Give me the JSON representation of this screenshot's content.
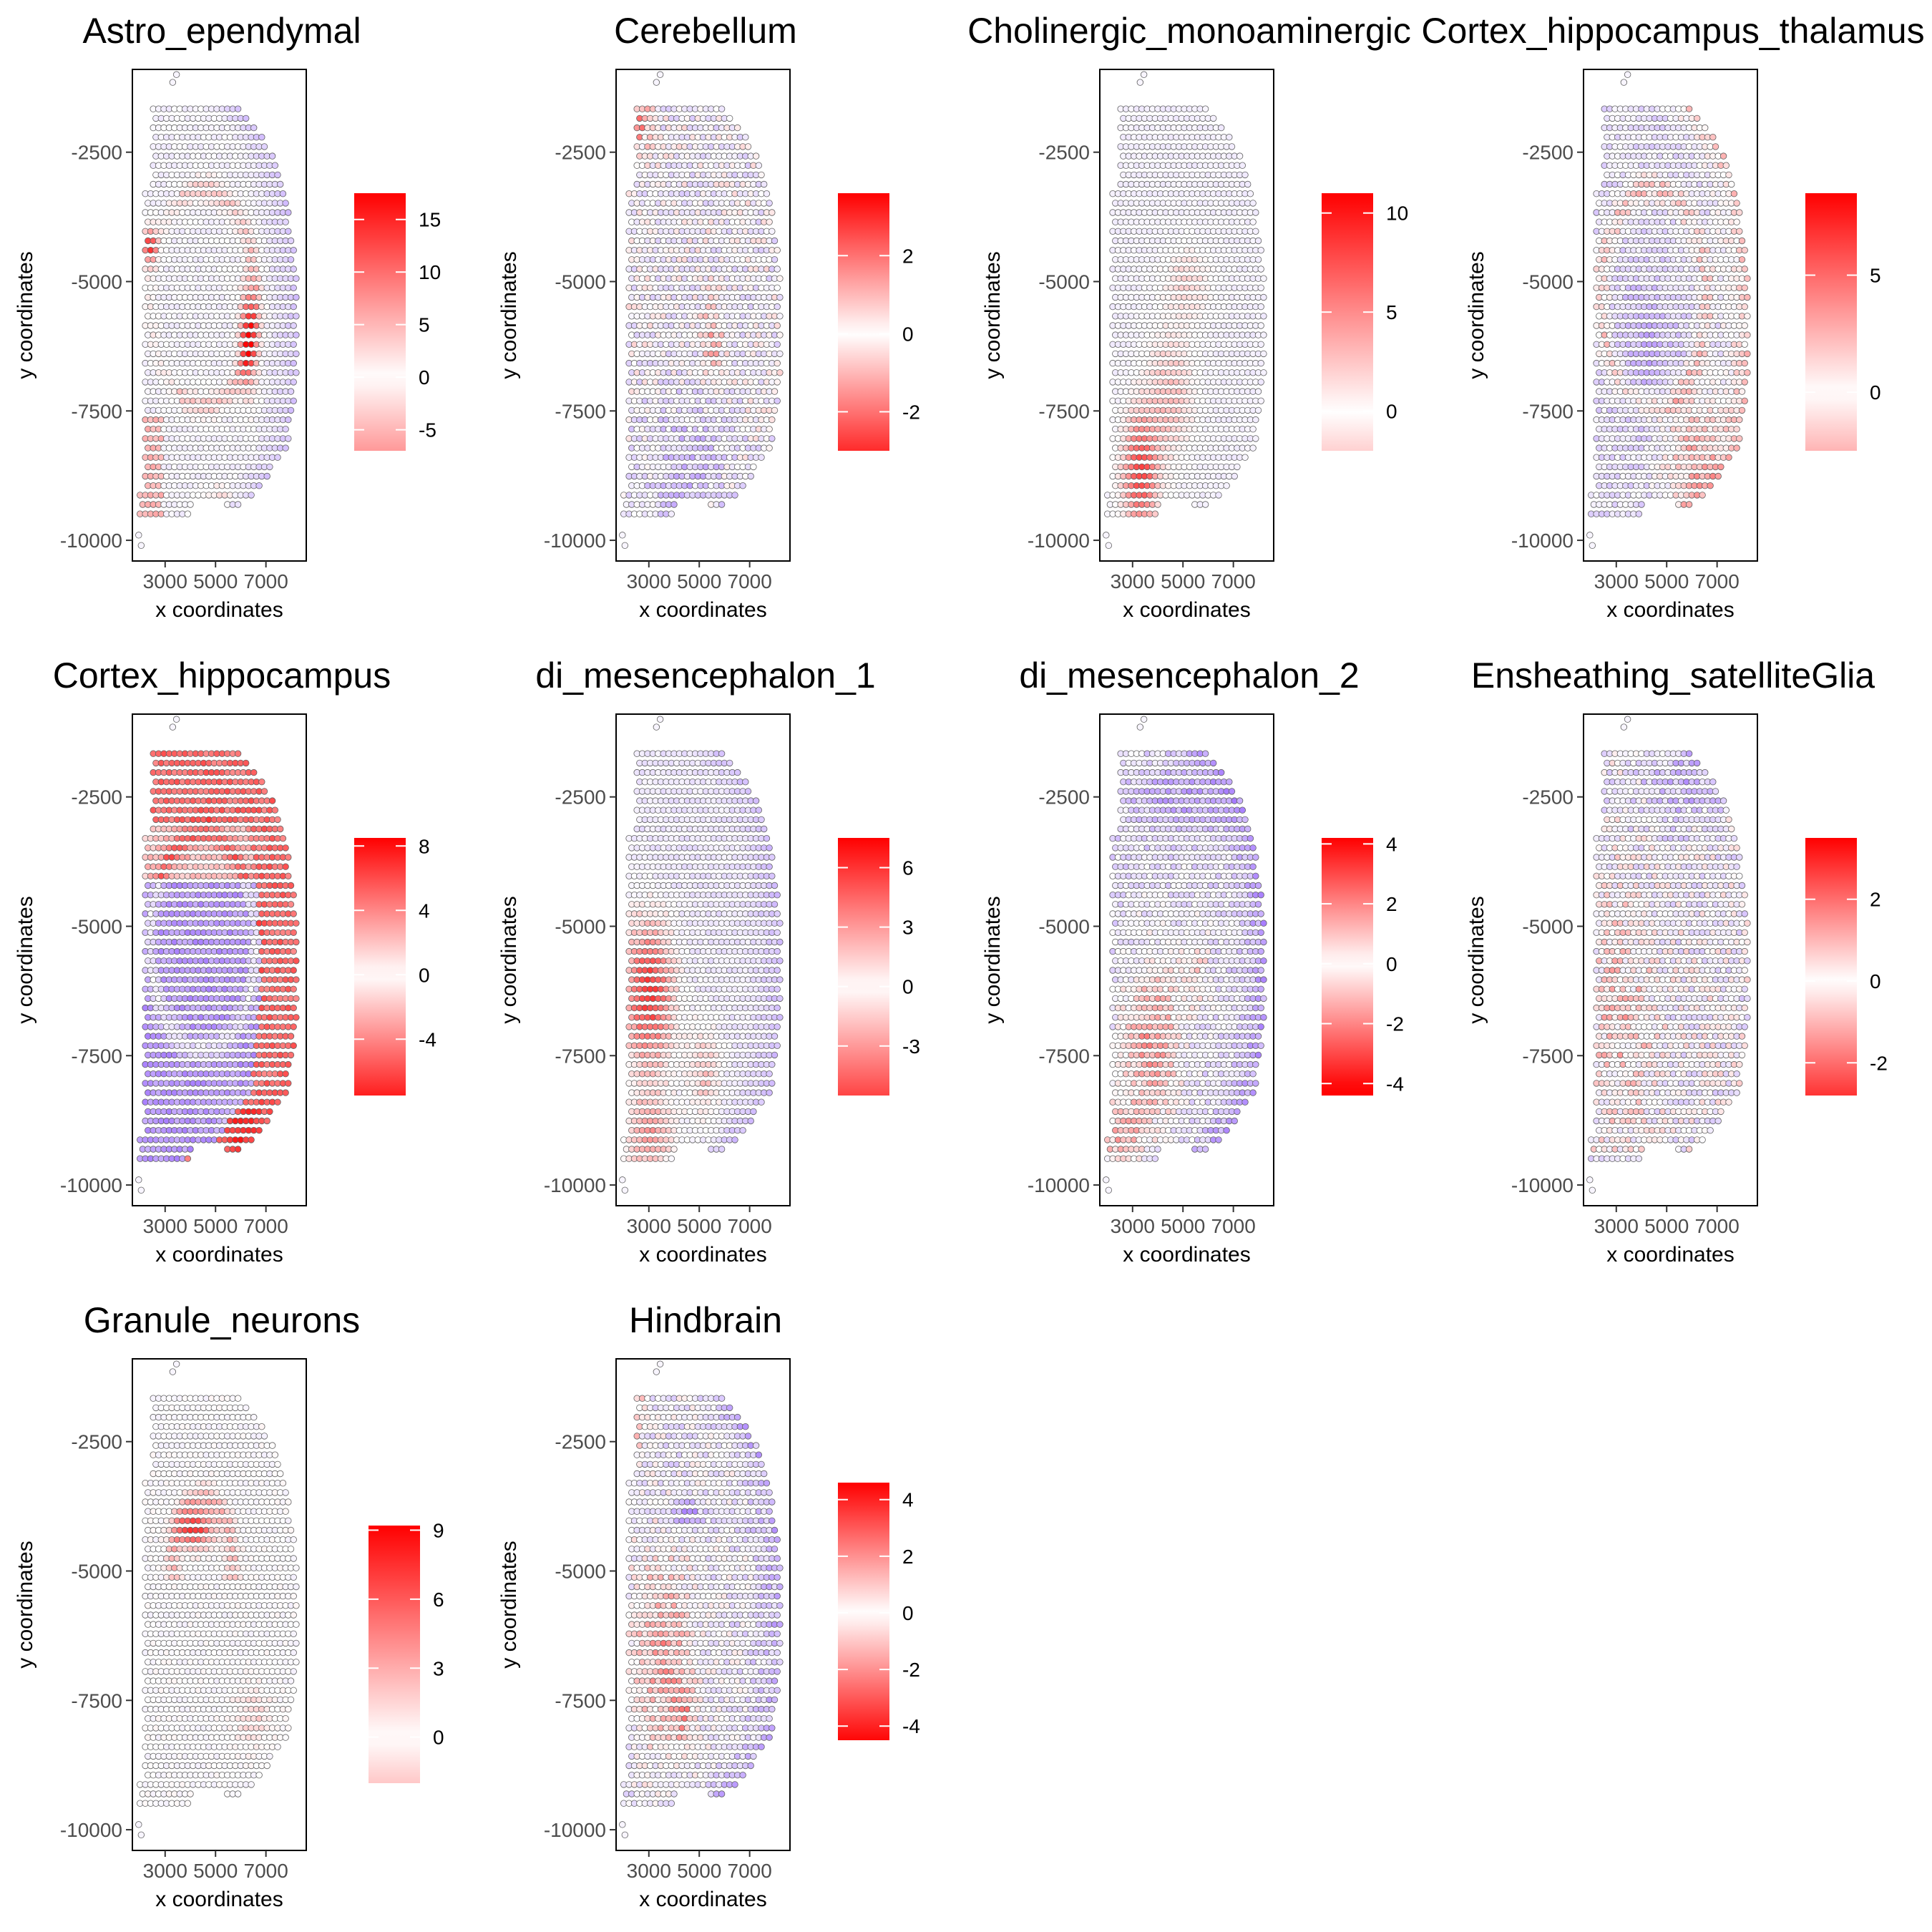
{
  "colors": {
    "low": "#7b3cff",
    "mid": "#ffffff",
    "high": "#ff0000",
    "spot_edge": "#606060"
  },
  "axes_common": {
    "xlabel": "x coordinates",
    "ylabel": "y coordinates",
    "x_ticks": [
      3000,
      5000,
      7000
    ],
    "y_ticks": [
      -2500,
      -5000,
      -7500,
      -10000
    ],
    "xlim": [
      1700,
      8600
    ],
    "ylim": [
      -10400,
      -900
    ]
  },
  "chart_data": [
    {
      "type": "scatter",
      "title": "Astro_ependymal",
      "xlabel": "x coordinates",
      "ylabel": "y coordinates",
      "color_scale": {
        "min": -7,
        "max": 17.5,
        "ticks": [
          -5,
          0,
          5,
          10,
          15
        ]
      },
      "pattern": "astro"
    },
    {
      "type": "scatter",
      "title": "Cerebellum",
      "xlabel": "x coordinates",
      "ylabel": "y coordinates",
      "color_scale": {
        "min": -3,
        "max": 3.6,
        "ticks": [
          -2,
          0,
          2
        ]
      },
      "pattern": "cerebellum"
    },
    {
      "type": "scatter",
      "title": "Cholinergic_monoaminergic",
      "xlabel": "x coordinates",
      "ylabel": "y coordinates",
      "color_scale": {
        "min": -2,
        "max": 11,
        "ticks": [
          0,
          5,
          10
        ]
      },
      "pattern": "cholinergic"
    },
    {
      "type": "scatter",
      "title": "Cortex_hippocampus_thalamus",
      "xlabel": "x coordinates",
      "ylabel": "y coordinates",
      "color_scale": {
        "min": -2.5,
        "max": 8.5,
        "ticks": [
          0,
          5
        ]
      },
      "pattern": "cht"
    },
    {
      "type": "scatter",
      "title": "Cortex_hippocampus",
      "xlabel": "x coordinates",
      "ylabel": "y coordinates",
      "color_scale": {
        "min": -7.5,
        "max": 8.5,
        "ticks": [
          -4,
          0,
          4,
          8
        ]
      },
      "pattern": "ch"
    },
    {
      "type": "scatter",
      "title": "di_mesencephalon_1",
      "xlabel": "x coordinates",
      "ylabel": "y coordinates",
      "color_scale": {
        "min": -5.5,
        "max": 7.5,
        "ticks": [
          -3,
          0,
          3,
          6
        ]
      },
      "pattern": "dm1"
    },
    {
      "type": "scatter",
      "title": "di_mesencephalon_2",
      "xlabel": "x coordinates",
      "ylabel": "y coordinates",
      "color_scale": {
        "min": -4.4,
        "max": 4.2,
        "ticks": [
          -4,
          -2,
          0,
          2,
          4
        ]
      },
      "pattern": "dm2"
    },
    {
      "type": "scatter",
      "title": "Ensheathing_satelliteGlia",
      "xlabel": "x coordinates",
      "ylabel": "y coordinates",
      "color_scale": {
        "min": -2.8,
        "max": 3.5,
        "ticks": [
          -2,
          0,
          2
        ]
      },
      "pattern": "esg"
    },
    {
      "type": "scatter",
      "title": "Granule_neurons",
      "xlabel": "x coordinates",
      "ylabel": "y coordinates",
      "color_scale": {
        "min": -2,
        "max": 9.2,
        "ticks": [
          0,
          3,
          6,
          9
        ]
      },
      "pattern": "granule"
    },
    {
      "type": "scatter",
      "title": "Hindbrain",
      "xlabel": "x coordinates",
      "ylabel": "y coordinates",
      "color_scale": {
        "min": -4.5,
        "max": 4.6,
        "ticks": [
          -4,
          -2,
          0,
          2,
          4
        ]
      },
      "pattern": "hindbrain"
    }
  ]
}
